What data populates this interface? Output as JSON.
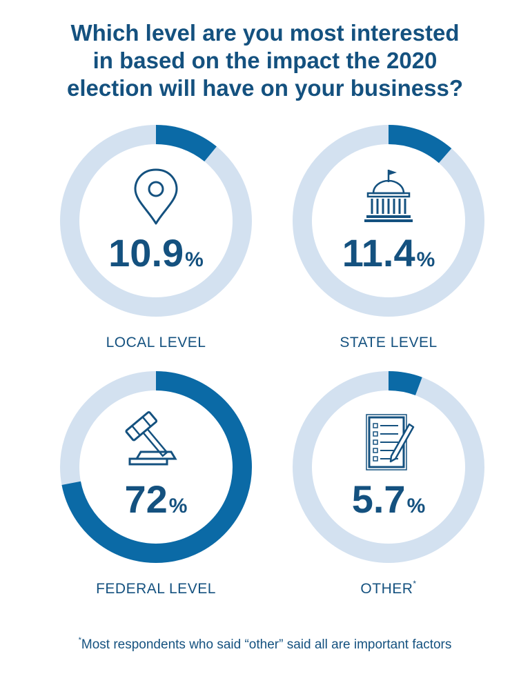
{
  "title": {
    "line1": "Which level are you most interested",
    "line2": "in based on the impact the 2020",
    "line3": "election will have on your business?"
  },
  "colors": {
    "accent": "#0b6aa6",
    "track": "#d3e1f0",
    "text": "#14517f"
  },
  "chart_data": {
    "type": "pie",
    "title": "Which level are you most interested in based on the impact the 2020 election will have on your business?",
    "categories": [
      "LOCAL LEVEL",
      "STATE LEVEL",
      "FEDERAL LEVEL",
      "OTHER"
    ],
    "values": [
      10.9,
      11.4,
      72,
      5.7
    ],
    "value_labels": [
      "10.9",
      "11.4",
      "72",
      "5.7"
    ],
    "unit": "%",
    "icons": [
      "map-pin-icon",
      "capitol-building-icon",
      "gavel-icon",
      "checklist-icon"
    ],
    "annotations": [
      "",
      "",
      "",
      "*"
    ]
  },
  "footnote": {
    "mark": "*",
    "text": "Most respondents who said “other” said all are important factors"
  }
}
